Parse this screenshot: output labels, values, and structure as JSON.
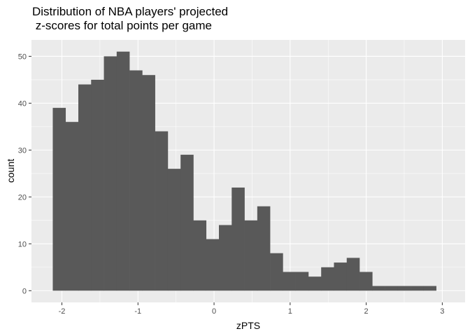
{
  "chart_data": {
    "type": "bar",
    "title_lines": [
      "Distribution of NBA players' projected",
      " z-scores for total points per game"
    ],
    "xlabel": "zPTS",
    "ylabel": "count",
    "xlim": [
      -2.4,
      3.3
    ],
    "ylim": [
      -2.5,
      53.5
    ],
    "x_ticks": [
      -2,
      -1,
      0,
      1,
      2,
      3
    ],
    "x_tick_labels": [
      "-2",
      "-1",
      "0",
      "1",
      "2",
      "3"
    ],
    "y_ticks": [
      0,
      10,
      20,
      30,
      40,
      50
    ],
    "y_tick_labels": [
      "0",
      "10",
      "20",
      "30",
      "40",
      "50"
    ],
    "bin_width": 0.168,
    "bin_start": -2.12,
    "counts": [
      39,
      36,
      44,
      45,
      50,
      51,
      47,
      46,
      34,
      26,
      29,
      15,
      11,
      14,
      22,
      15,
      18,
      8,
      4,
      4,
      3,
      5,
      6,
      7,
      4,
      1,
      1,
      1,
      1,
      1
    ],
    "bar_color": "#595959",
    "panel_color": "#ebebeb",
    "grid_color": "#ffffff",
    "grid": true
  }
}
